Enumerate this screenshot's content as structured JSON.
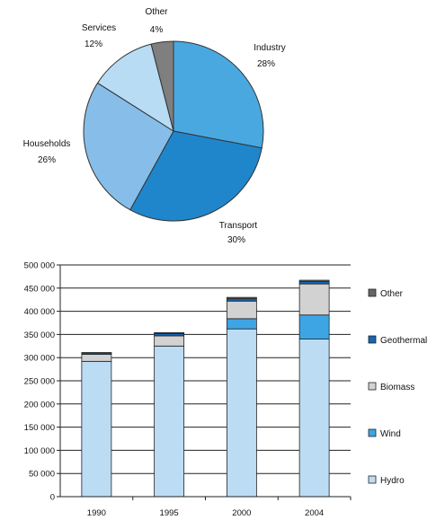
{
  "chart_data": [
    {
      "type": "pie",
      "categories": [
        "Industry",
        "Transport",
        "Households",
        "Services",
        "Other"
      ],
      "values": [
        28,
        30,
        26,
        12,
        4
      ],
      "labels": [
        "28%",
        "30%",
        "26%",
        "12%",
        "4%"
      ],
      "colors": [
        "#4aa8e0",
        "#1f86cc",
        "#86bee9",
        "#b8dcf4",
        "#7f7f7f"
      ]
    },
    {
      "type": "bar",
      "stacked": true,
      "categories": [
        "1990",
        "1995",
        "2000",
        "2004"
      ],
      "series": [
        {
          "name": "Hydro",
          "values": [
            292000,
            325000,
            362000,
            340000
          ],
          "color": "#bcdcf4"
        },
        {
          "name": "Wind",
          "values": [
            0,
            0,
            22000,
            52000
          ],
          "color": "#3ea5e5"
        },
        {
          "name": "Biomass",
          "values": [
            15000,
            22000,
            38000,
            67000
          ],
          "color": "#d2d2d2"
        },
        {
          "name": "Geothermal",
          "values": [
            3000,
            5000,
            5000,
            5000
          ],
          "color": "#1166b5"
        },
        {
          "name": "Other",
          "values": [
            1000,
            2000,
            3000,
            3000
          ],
          "color": "#666666"
        }
      ],
      "legend_order": [
        "Other",
        "Geothermal",
        "Biomass",
        "Wind",
        "Hydro"
      ],
      "ylim": [
        0,
        500000
      ],
      "yticks": [
        0,
        50000,
        100000,
        150000,
        200000,
        250000,
        300000,
        350000,
        400000,
        450000,
        500000
      ],
      "ytick_labels": [
        "0",
        "50 000",
        "100 000",
        "150 000",
        "200 000",
        "250 000",
        "300 000",
        "350 000",
        "400 000",
        "450 000",
        "500 000"
      ],
      "grid": true,
      "legend_position": "right"
    }
  ]
}
